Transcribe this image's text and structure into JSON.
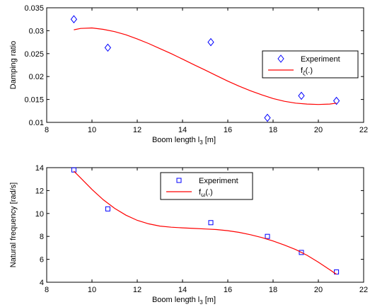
{
  "chart_data": [
    {
      "type": "scatter",
      "title": "",
      "xlabel": "Boom length l",
      "xlabel_sub": "3",
      "xlabel_suffix": " [m]",
      "ylabel": "Damping ratio",
      "xlim": [
        8,
        22
      ],
      "ylim": [
        0.01,
        0.035
      ],
      "xticks": [
        8,
        10,
        12,
        14,
        16,
        18,
        20,
        22
      ],
      "yticks": [
        0.01,
        0.015,
        0.02,
        0.025,
        0.03,
        0.035
      ],
      "ytick_labels": [
        "0.01",
        "0.015",
        "0.02",
        "0.025",
        "0.03",
        "0.035"
      ],
      "grid": false,
      "legend_position": "right",
      "series": [
        {
          "name": "Experiment",
          "kind": "markers",
          "marker": "diamond",
          "color": "#0000ff",
          "x": [
            9.2,
            10.7,
            15.25,
            17.75,
            19.25,
            20.8
          ],
          "y": [
            0.0325,
            0.0263,
            0.0275,
            0.011,
            0.0158,
            0.0147
          ]
        },
        {
          "name": "f",
          "name_sub": "ζ",
          "name_suffix": "(.)",
          "kind": "line",
          "color": "#ff0000",
          "x": [
            9.2,
            9.5,
            10,
            10.5,
            11,
            11.5,
            12,
            12.5,
            13,
            13.5,
            14,
            14.5,
            15,
            15.5,
            16,
            16.5,
            17,
            17.5,
            18,
            18.5,
            19,
            19.5,
            20,
            20.5,
            20.8
          ],
          "y": [
            0.0302,
            0.0305,
            0.0306,
            0.0303,
            0.0298,
            0.0291,
            0.0282,
            0.0272,
            0.0261,
            0.025,
            0.0238,
            0.0226,
            0.0214,
            0.0202,
            0.019,
            0.0179,
            0.0169,
            0.016,
            0.0152,
            0.0146,
            0.0142,
            0.014,
            0.0139,
            0.014,
            0.0142
          ]
        }
      ]
    },
    {
      "type": "scatter",
      "title": "",
      "xlabel": "Boom length l",
      "xlabel_sub": "3",
      "xlabel_suffix": " [m]",
      "ylabel": "Natural frequency [rad/s]",
      "xlim": [
        8,
        22
      ],
      "ylim": [
        4,
        14
      ],
      "xticks": [
        8,
        10,
        12,
        14,
        16,
        18,
        20,
        22
      ],
      "yticks": [
        4,
        6,
        8,
        10,
        12,
        14
      ],
      "ytick_labels": [
        "4",
        "6",
        "8",
        "10",
        "12",
        "14"
      ],
      "grid": false,
      "legend_position": "top-center",
      "series": [
        {
          "name": "Experiment",
          "kind": "markers",
          "marker": "square",
          "color": "#0000ff",
          "x": [
            9.2,
            10.7,
            15.25,
            17.75,
            19.25,
            20.8
          ],
          "y": [
            13.8,
            10.4,
            9.2,
            8.0,
            6.6,
            4.9
          ]
        },
        {
          "name": "f",
          "name_sub": "ω",
          "name_suffix": "(.)",
          "kind": "line",
          "color": "#ff0000",
          "x": [
            9.2,
            9.5,
            10,
            10.5,
            11,
            11.5,
            12,
            12.5,
            13,
            13.5,
            14,
            14.5,
            15,
            15.5,
            16,
            16.5,
            17,
            17.5,
            18,
            18.5,
            19,
            19.5,
            20,
            20.5,
            20.8
          ],
          "y": [
            13.7,
            13.1,
            12.1,
            11.2,
            10.45,
            9.85,
            9.4,
            9.1,
            8.9,
            8.8,
            8.75,
            8.7,
            8.65,
            8.6,
            8.5,
            8.35,
            8.15,
            7.9,
            7.6,
            7.25,
            6.85,
            6.35,
            5.75,
            5.1,
            4.7
          ]
        }
      ]
    }
  ]
}
